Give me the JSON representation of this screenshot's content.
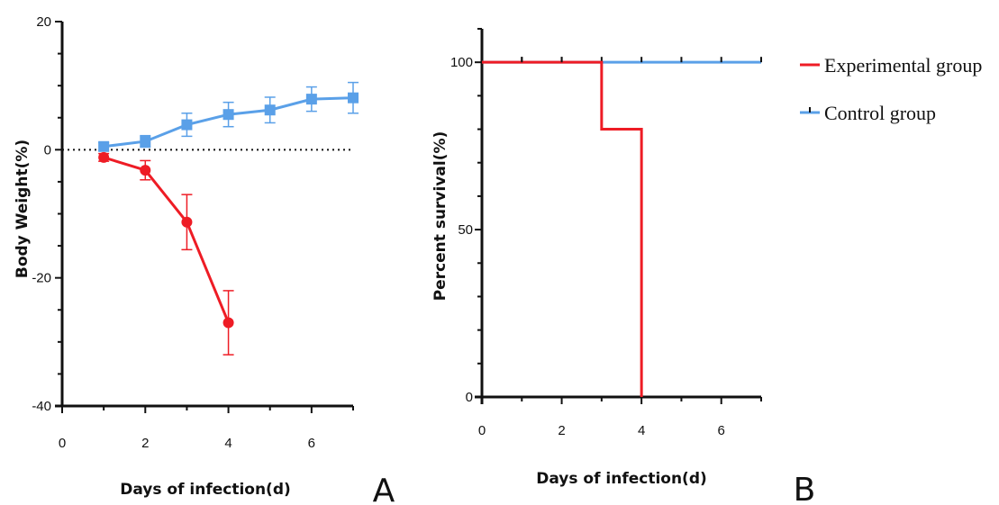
{
  "colors": {
    "experimental": "#ee1c25",
    "control": "#5aa0e8",
    "axis": "#111111"
  },
  "legend": {
    "experimental_label": "Experimental group",
    "control_label": "Control group",
    "placement": "top-right"
  },
  "chart_data": [
    {
      "panel": "A",
      "type": "line",
      "xlabel": "Days of infection(d)",
      "ylabel": "Body Weight(%)",
      "xlim": [
        0,
        7
      ],
      "ylim": [
        -40,
        20
      ],
      "xticks": [
        0,
        2,
        4,
        6
      ],
      "yticks": [
        -40,
        -20,
        0,
        20
      ],
      "reference_line": {
        "y": 0,
        "style": "dotted"
      },
      "grid": false,
      "series": [
        {
          "name": "Experimental group",
          "color_key": "experimental",
          "marker": "circle",
          "x": [
            1,
            2,
            3,
            4
          ],
          "y": [
            -1.2,
            -3.2,
            -11.3,
            -27
          ],
          "error": [
            0.6,
            1.5,
            4.3,
            5
          ]
        },
        {
          "name": "Control group",
          "color_key": "control",
          "marker": "square",
          "x": [
            1,
            2,
            3,
            4,
            5,
            6,
            7
          ],
          "y": [
            0.5,
            1.3,
            3.9,
            5.5,
            6.2,
            7.9,
            8.1
          ],
          "error": [
            0.6,
            0.9,
            1.8,
            1.9,
            2.0,
            1.9,
            2.4
          ]
        }
      ]
    },
    {
      "panel": "B",
      "type": "line",
      "subtype": "survival-step",
      "xlabel": "Days of infection(d)",
      "ylabel": "Percent survival(%)",
      "xlim": [
        0,
        7
      ],
      "ylim": [
        0,
        110
      ],
      "xticks": [
        0,
        2,
        4,
        6
      ],
      "yticks": [
        0,
        50,
        100
      ],
      "grid": false,
      "series": [
        {
          "name": "Control group",
          "color_key": "control",
          "step_x": [
            0,
            7
          ],
          "step_y": [
            100,
            100
          ],
          "censor_x": [
            1,
            2,
            3,
            4,
            5,
            6,
            7
          ]
        },
        {
          "name": "Experimental group",
          "color_key": "experimental",
          "step_x": [
            0,
            3,
            4
          ],
          "step_y": [
            100,
            80,
            0
          ],
          "censor_x": [
            1,
            2
          ]
        }
      ]
    }
  ]
}
